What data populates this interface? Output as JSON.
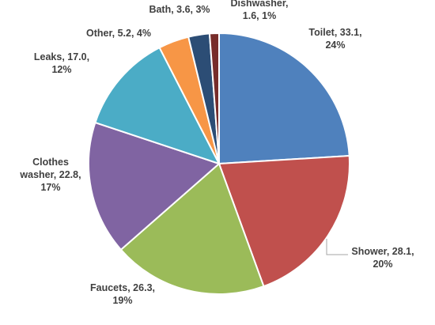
{
  "chart_data": {
    "type": "pie",
    "title": "",
    "start_angle_deg": 0,
    "direction": "clockwise",
    "legend": "none",
    "slices": [
      {
        "label": "Toilet",
        "value": 33.1,
        "percent": "24%",
        "color": "#4f81bd",
        "label_lines": [
          "Toilet, 33.1,",
          "24%"
        ]
      },
      {
        "label": "Shower",
        "value": 28.1,
        "percent": "20%",
        "color": "#c0504d",
        "label_lines": [
          "Shower, 28.1,",
          "20%"
        ]
      },
      {
        "label": "Faucets",
        "value": 26.3,
        "percent": "19%",
        "color": "#9bbb59",
        "label_lines": [
          "Faucets, 26.3,",
          "19%"
        ]
      },
      {
        "label": "Clothes washer",
        "value": 22.8,
        "percent": "17%",
        "color": "#8064a2",
        "label_lines": [
          "Clothes",
          "washer, 22.8,",
          "17%"
        ]
      },
      {
        "label": "Leaks",
        "value": 17.0,
        "percent": "12%",
        "color": "#4bacc6",
        "label_lines": [
          "Leaks, 17.0,",
          "12%"
        ]
      },
      {
        "label": "Other",
        "value": 5.2,
        "percent": "4%",
        "color": "#f79646",
        "label_lines": [
          "Other, 5.2, 4%"
        ]
      },
      {
        "label": "Bath",
        "value": 3.6,
        "percent": "3%",
        "color": "#2c4d75",
        "label_lines": [
          "Bath, 3.6, 3%"
        ]
      },
      {
        "label": "Dishwasher",
        "value": 1.6,
        "percent": "1%",
        "color": "#772c2a",
        "label_lines": [
          "Dishwasher,",
          "1.6, 1%"
        ]
      }
    ]
  }
}
